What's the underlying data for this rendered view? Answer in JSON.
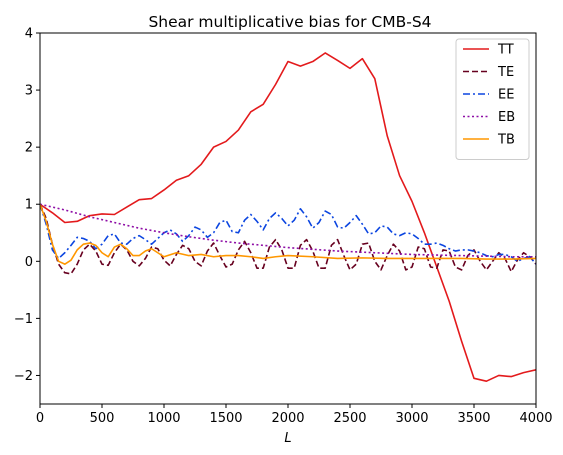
{
  "chart_data": {
    "type": "line",
    "title": "Shear multiplicative bias for CMB-S4",
    "xlabel": "L",
    "ylabel": "",
    "xlim": [
      0,
      4000
    ],
    "ylim": [
      -2.5,
      4
    ],
    "xticks": [
      "0",
      "500",
      "1000",
      "1500",
      "2000",
      "2500",
      "3000",
      "3500",
      "4000"
    ],
    "yticks": [
      "−2",
      "−1",
      "0",
      "1",
      "2",
      "3",
      "4"
    ],
    "xtick_values": [
      0,
      500,
      1000,
      1500,
      2000,
      2500,
      3000,
      3500,
      4000
    ],
    "ytick_values": [
      -2,
      -1,
      0,
      1,
      2,
      3,
      4
    ],
    "grid": false,
    "legend_position": "top-right",
    "series": [
      {
        "name": "TT",
        "color": "#e31a1c",
        "dash": "solid",
        "x": [
          0,
          100,
          200,
          300,
          400,
          500,
          600,
          700,
          800,
          900,
          1000,
          1100,
          1200,
          1300,
          1400,
          1500,
          1600,
          1700,
          1800,
          1900,
          2000,
          2100,
          2200,
          2300,
          2400,
          2500,
          2600,
          2700,
          2800,
          2900,
          3000,
          3100,
          3200,
          3300,
          3400,
          3500,
          3600,
          3700,
          3800,
          3900,
          4000
        ],
        "y": [
          1.0,
          0.85,
          0.68,
          0.7,
          0.8,
          0.83,
          0.82,
          0.95,
          1.08,
          1.1,
          1.25,
          1.42,
          1.5,
          1.7,
          2.0,
          2.1,
          2.3,
          2.62,
          2.75,
          3.1,
          3.5,
          3.42,
          3.5,
          3.65,
          3.52,
          3.38,
          3.55,
          3.2,
          2.2,
          1.5,
          1.05,
          0.5,
          -0.1,
          -0.7,
          -1.4,
          -2.05,
          -2.1,
          -2.0,
          -2.02,
          -1.95,
          -1.9
        ]
      },
      {
        "name": "TE",
        "color": "#67001f",
        "dash": "dashed",
        "x": [
          0,
          50,
          100,
          150,
          200,
          250,
          300,
          350,
          400,
          450,
          500,
          550,
          600,
          650,
          700,
          750,
          800,
          850,
          900,
          950,
          1000,
          1050,
          1100,
          1150,
          1200,
          1250,
          1300,
          1350,
          1400,
          1450,
          1500,
          1550,
          1600,
          1650,
          1700,
          1750,
          1800,
          1850,
          1900,
          1950,
          2000,
          2050,
          2100,
          2150,
          2200,
          2250,
          2300,
          2350,
          2400,
          2450,
          2500,
          2550,
          2600,
          2650,
          2700,
          2750,
          2800,
          2850,
          2900,
          2950,
          3000,
          3050,
          3100,
          3150,
          3200,
          3250,
          3300,
          3350,
          3400,
          3450,
          3500,
          3550,
          3600,
          3650,
          3700,
          3750,
          3800,
          3850,
          3900,
          3950,
          4000
        ],
        "y": [
          1.0,
          0.75,
          0.3,
          -0.05,
          -0.2,
          -0.22,
          -0.05,
          0.2,
          0.3,
          0.18,
          -0.05,
          -0.07,
          0.15,
          0.3,
          0.2,
          0.0,
          -0.08,
          0.05,
          0.25,
          0.22,
          0.02,
          -0.08,
          0.12,
          0.28,
          0.22,
          0.0,
          -0.08,
          0.18,
          0.32,
          0.1,
          -0.1,
          -0.05,
          0.2,
          0.35,
          0.15,
          -0.12,
          -0.12,
          0.25,
          0.38,
          0.2,
          -0.12,
          -0.12,
          0.28,
          0.38,
          0.18,
          -0.12,
          -0.12,
          0.28,
          0.38,
          0.1,
          -0.15,
          -0.05,
          0.3,
          0.32,
          0.0,
          -0.15,
          0.1,
          0.3,
          0.18,
          -0.15,
          -0.1,
          0.25,
          0.22,
          -0.1,
          -0.12,
          0.2,
          0.18,
          -0.1,
          -0.15,
          0.1,
          0.2,
          0.0,
          -0.15,
          0.0,
          0.15,
          0.05,
          -0.18,
          0.02,
          0.15,
          0.08,
          -0.05
        ]
      },
      {
        "name": "EE",
        "color": "#0b45e0",
        "dash": "dashdot",
        "x": [
          0,
          50,
          100,
          150,
          200,
          250,
          300,
          350,
          400,
          450,
          500,
          550,
          600,
          650,
          700,
          750,
          800,
          850,
          900,
          950,
          1000,
          1050,
          1100,
          1150,
          1200,
          1250,
          1300,
          1350,
          1400,
          1450,
          1500,
          1550,
          1600,
          1650,
          1700,
          1750,
          1800,
          1850,
          1900,
          1950,
          2000,
          2050,
          2100,
          2150,
          2200,
          2250,
          2300,
          2350,
          2400,
          2450,
          2500,
          2550,
          2600,
          2650,
          2700,
          2750,
          2800,
          2850,
          2900,
          2950,
          3000,
          3050,
          3100,
          3150,
          3200,
          3250,
          3300,
          3350,
          3400,
          3450,
          3500,
          3550,
          3600,
          3650,
          3700,
          3750,
          3800,
          3850,
          3900,
          3950,
          4000
        ],
        "y": [
          1.0,
          0.65,
          0.2,
          0.05,
          0.15,
          0.28,
          0.42,
          0.4,
          0.35,
          0.22,
          0.3,
          0.45,
          0.48,
          0.32,
          0.3,
          0.4,
          0.45,
          0.38,
          0.3,
          0.4,
          0.5,
          0.55,
          0.48,
          0.35,
          0.45,
          0.6,
          0.55,
          0.42,
          0.5,
          0.68,
          0.72,
          0.52,
          0.5,
          0.72,
          0.82,
          0.7,
          0.55,
          0.75,
          0.85,
          0.75,
          0.62,
          0.72,
          0.92,
          0.78,
          0.58,
          0.68,
          0.88,
          0.82,
          0.6,
          0.58,
          0.68,
          0.8,
          0.65,
          0.48,
          0.5,
          0.62,
          0.6,
          0.48,
          0.45,
          0.5,
          0.48,
          0.4,
          0.3,
          0.3,
          0.32,
          0.28,
          0.22,
          0.18,
          0.2,
          0.2,
          0.18,
          0.15,
          0.1,
          0.08,
          0.12,
          0.12,
          0.08,
          0.0,
          0.05,
          0.08,
          -0.05
        ]
      },
      {
        "name": "EB",
        "color": "#8e0ea6",
        "dash": "dotted",
        "x": [
          0,
          200,
          400,
          600,
          800,
          1000,
          1200,
          1400,
          1600,
          1800,
          2000,
          2200,
          2400,
          2600,
          2800,
          3000,
          3200,
          3400,
          3600,
          3800,
          4000
        ],
        "y": [
          1.0,
          0.9,
          0.78,
          0.68,
          0.58,
          0.5,
          0.43,
          0.37,
          0.32,
          0.28,
          0.24,
          0.21,
          0.18,
          0.16,
          0.14,
          0.12,
          0.11,
          0.1,
          0.09,
          0.08,
          0.08
        ]
      },
      {
        "name": "TB",
        "color": "#ff9700",
        "dash": "solid",
        "x": [
          0,
          50,
          100,
          150,
          200,
          250,
          300,
          350,
          400,
          450,
          500,
          550,
          600,
          650,
          700,
          750,
          800,
          850,
          900,
          950,
          1000,
          1100,
          1200,
          1300,
          1400,
          1500,
          1600,
          1700,
          1800,
          1900,
          2000,
          2200,
          2400,
          2600,
          2800,
          3000,
          3200,
          3400,
          3600,
          3800,
          4000
        ],
        "y": [
          1.0,
          0.7,
          0.3,
          0.0,
          -0.05,
          0.02,
          0.2,
          0.3,
          0.32,
          0.28,
          0.15,
          0.08,
          0.25,
          0.3,
          0.22,
          0.1,
          0.1,
          0.18,
          0.22,
          0.15,
          0.08,
          0.15,
          0.1,
          0.12,
          0.08,
          0.1,
          0.1,
          0.08,
          0.05,
          0.08,
          0.1,
          0.08,
          0.05,
          0.06,
          0.05,
          0.05,
          0.05,
          0.05,
          0.04,
          0.04,
          0.05
        ]
      }
    ]
  }
}
